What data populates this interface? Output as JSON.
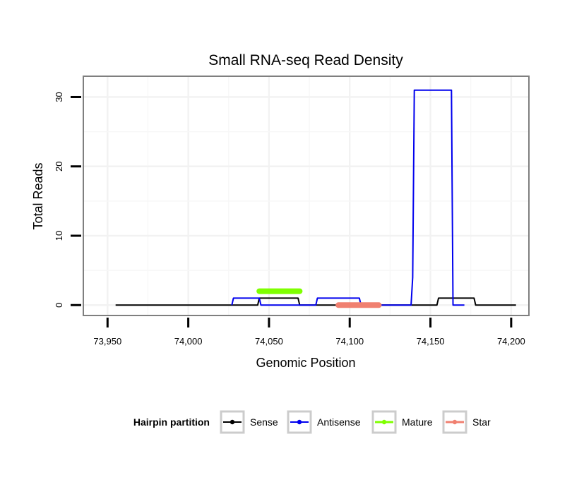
{
  "chart_data": {
    "type": "line",
    "title": "Small RNA-seq Read Density",
    "xlabel": "Genomic Position",
    "ylabel": "Total Reads",
    "xlim": [
      73935,
      74211
    ],
    "ylim": [
      -1.5,
      33
    ],
    "x_ticks": [
      73950,
      74000,
      74050,
      74100,
      74150,
      74200
    ],
    "x_tick_labels": [
      "73,950",
      "74,000",
      "74,050",
      "74,100",
      "74,150",
      "74,200"
    ],
    "y_ticks": [
      0,
      10,
      20,
      30
    ],
    "y_tick_labels": [
      "0",
      "10",
      "20",
      "30"
    ],
    "grid": true,
    "legend": {
      "title": "Hairpin partition",
      "position": "bottom",
      "entries": [
        "Sense",
        "Antisense",
        "Mature",
        "Star"
      ]
    },
    "series": [
      {
        "name": "Sense",
        "color": "#000000",
        "points": [
          [
            73955,
            0
          ],
          [
            74043,
            0
          ],
          [
            74044,
            1
          ],
          [
            74068,
            1
          ],
          [
            74069,
            0
          ],
          [
            74154,
            0
          ],
          [
            74155,
            1
          ],
          [
            74177,
            1
          ],
          [
            74178,
            0
          ],
          [
            74203,
            0
          ]
        ]
      },
      {
        "name": "Antisense",
        "color": "#0000ee",
        "points": [
          [
            74027,
            0
          ],
          [
            74028,
            1
          ],
          [
            74044,
            1
          ],
          [
            74045,
            0
          ],
          [
            74079,
            0
          ],
          [
            74080,
            1
          ],
          [
            74106,
            1
          ],
          [
            74107,
            0
          ],
          [
            74138,
            0
          ],
          [
            74139,
            4
          ],
          [
            74140,
            31
          ],
          [
            74163,
            31
          ],
          [
            74164,
            0
          ],
          [
            74171,
            0
          ]
        ]
      },
      {
        "name": "Mature",
        "color": "#7fff00",
        "points": [
          [
            74044,
            2
          ],
          [
            74069,
            2
          ]
        ]
      },
      {
        "name": "Star",
        "color": "#f08070",
        "points": [
          [
            74093,
            0
          ],
          [
            74118,
            0
          ]
        ]
      }
    ]
  }
}
